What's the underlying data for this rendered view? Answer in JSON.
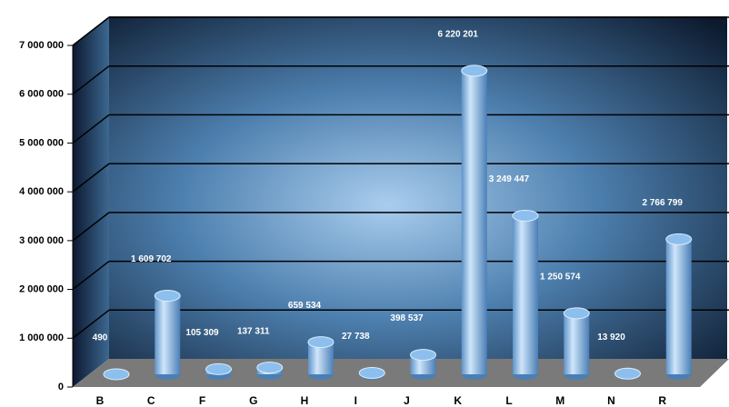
{
  "chart_data": {
    "type": "bar",
    "categories": [
      "B",
      "C",
      "F",
      "G",
      "H",
      "I",
      "J",
      "K",
      "L",
      "M",
      "N",
      "R"
    ],
    "values": [
      490,
      1609702,
      105309,
      137311,
      659534,
      27738,
      398537,
      6220201,
      3249447,
      1250574,
      13920,
      2766799
    ],
    "value_labels": [
      "490",
      "1 609 702",
      "105 309",
      "137 311",
      "659 534",
      "27 738",
      "398 537",
      "6 220 201",
      "3 249 447",
      "1 250 574",
      "13 920",
      "2 766 799"
    ],
    "color": "#8cbfee",
    "ylim": [
      0,
      7000000
    ],
    "yticks": [
      {
        "value": 0,
        "label": "0"
      },
      {
        "value": 1000000,
        "label": "1 000 000"
      },
      {
        "value": 2000000,
        "label": "2 000 000"
      },
      {
        "value": 3000000,
        "label": "3 000 000"
      },
      {
        "value": 4000000,
        "label": "4 000 000"
      },
      {
        "value": 5000000,
        "label": "5 000 000"
      },
      {
        "value": 6000000,
        "label": "6 000 000"
      },
      {
        "value": 7000000,
        "label": "7 000 000"
      }
    ],
    "grid": true
  }
}
